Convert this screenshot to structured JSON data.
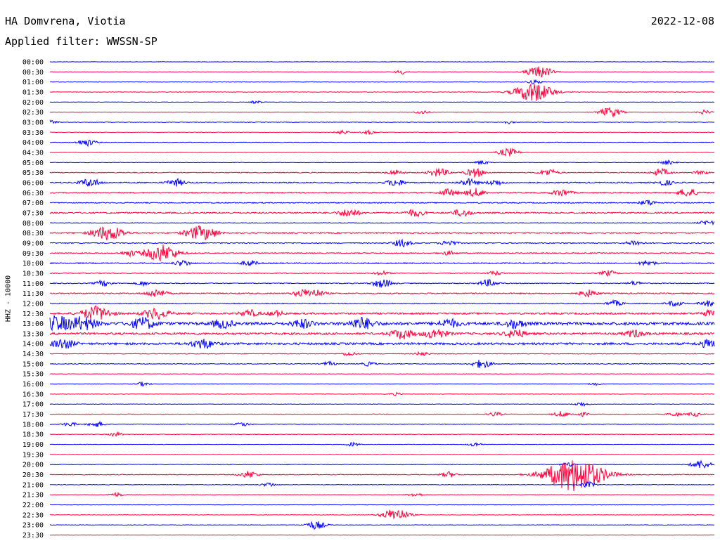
{
  "header": {
    "station": "HA Domvrena, Viotia",
    "date": "2022-12-08",
    "filter": "Applied filter: WWSSN-SP"
  },
  "chart_data": {
    "type": "line",
    "title": "HA Domvrena, Viotia",
    "ylabel": "HHZ - 10000",
    "colors": [
      "#0000ff",
      "#ff003c"
    ],
    "rows": [
      {
        "label": "00:00",
        "activity": 0.3,
        "events": []
      },
      {
        "label": "00:30",
        "activity": 0.3,
        "events": [
          [
            0.53,
            3
          ],
          [
            0.73,
            6
          ],
          [
            0.745,
            5
          ]
        ]
      },
      {
        "label": "01:00",
        "activity": 0.3,
        "events": [
          [
            0.73,
            3
          ]
        ]
      },
      {
        "label": "01:30",
        "activity": 0.4,
        "events": [
          [
            0.728,
            14
          ]
        ]
      },
      {
        "label": "02:00",
        "activity": 0.25,
        "events": [
          [
            0.31,
            2
          ]
        ]
      },
      {
        "label": "02:30",
        "activity": 0.3,
        "events": [
          [
            0.56,
            3
          ],
          [
            0.843,
            7
          ],
          [
            0.985,
            3
          ]
        ]
      },
      {
        "label": "03:00",
        "activity": 0.4,
        "events": [
          [
            0.0,
            3
          ],
          [
            0.69,
            2
          ]
        ]
      },
      {
        "label": "03:30",
        "activity": 0.3,
        "events": [
          [
            0.44,
            3
          ],
          [
            0.48,
            3
          ]
        ]
      },
      {
        "label": "04:00",
        "activity": 0.4,
        "events": [
          [
            0.055,
            5
          ]
        ]
      },
      {
        "label": "04:30",
        "activity": 0.3,
        "events": [
          [
            0.69,
            6
          ]
        ]
      },
      {
        "label": "05:00",
        "activity": 0.35,
        "events": [
          [
            0.65,
            3
          ],
          [
            0.93,
            3
          ]
        ]
      },
      {
        "label": "05:30",
        "activity": 0.6,
        "events": [
          [
            0.52,
            4
          ],
          [
            0.585,
            6
          ],
          [
            0.64,
            6
          ],
          [
            0.75,
            5
          ],
          [
            0.92,
            5
          ],
          [
            0.98,
            3
          ]
        ]
      },
      {
        "label": "06:00",
        "activity": 0.8,
        "events": [
          [
            0.06,
            6
          ],
          [
            0.19,
            5
          ],
          [
            0.52,
            5
          ],
          [
            0.63,
            5
          ],
          [
            0.67,
            4
          ],
          [
            0.925,
            4
          ]
        ]
      },
      {
        "label": "06:30",
        "activity": 0.8,
        "events": [
          [
            0.6,
            5
          ],
          [
            0.64,
            6
          ],
          [
            0.77,
            5
          ],
          [
            0.96,
            6
          ]
        ]
      },
      {
        "label": "07:00",
        "activity": 0.7,
        "events": [
          [
            0.9,
            4
          ]
        ]
      },
      {
        "label": "07:30",
        "activity": 1.0,
        "events": [
          [
            0.45,
            6
          ],
          [
            0.55,
            5
          ],
          [
            0.62,
            5
          ]
        ]
      },
      {
        "label": "08:00",
        "activity": 0.5,
        "events": [
          [
            0.99,
            4
          ]
        ]
      },
      {
        "label": "08:30",
        "activity": 0.9,
        "events": [
          [
            0.08,
            8
          ],
          [
            0.1,
            6
          ],
          [
            0.22,
            8
          ],
          [
            0.24,
            6
          ]
        ]
      },
      {
        "label": "09:00",
        "activity": 0.7,
        "events": [
          [
            0.53,
            5
          ],
          [
            0.6,
            4
          ],
          [
            0.88,
            4
          ]
        ]
      },
      {
        "label": "09:30",
        "activity": 0.7,
        "events": [
          [
            0.12,
            4
          ],
          [
            0.168,
            12
          ],
          [
            0.6,
            3
          ]
        ]
      },
      {
        "label": "10:00",
        "activity": 0.8,
        "events": [
          [
            0.2,
            4
          ],
          [
            0.3,
            4
          ],
          [
            0.9,
            4
          ]
        ]
      },
      {
        "label": "10:30",
        "activity": 0.6,
        "events": [
          [
            0.5,
            3
          ],
          [
            0.67,
            3
          ],
          [
            0.84,
            4
          ]
        ]
      },
      {
        "label": "11:00",
        "activity": 0.6,
        "events": [
          [
            0.08,
            4
          ],
          [
            0.14,
            3
          ],
          [
            0.5,
            6
          ],
          [
            0.66,
            5
          ],
          [
            0.88,
            3
          ]
        ]
      },
      {
        "label": "11:30",
        "activity": 0.8,
        "events": [
          [
            0.16,
            6
          ],
          [
            0.38,
            5
          ],
          [
            0.4,
            5
          ],
          [
            0.81,
            5
          ]
        ]
      },
      {
        "label": "12:00",
        "activity": 0.6,
        "events": [
          [
            0.85,
            4
          ],
          [
            0.94,
            4
          ],
          [
            0.99,
            4
          ]
        ]
      },
      {
        "label": "12:30",
        "activity": 1.2,
        "events": [
          [
            0.07,
            10
          ],
          [
            0.16,
            8
          ],
          [
            0.3,
            5
          ],
          [
            0.34,
            4
          ],
          [
            0.99,
            4
          ]
        ]
      },
      {
        "label": "13:00",
        "activity": 2.0,
        "events": [
          [
            0.01,
            10
          ],
          [
            0.05,
            9
          ],
          [
            0.14,
            8
          ],
          [
            0.26,
            6
          ],
          [
            0.38,
            6
          ],
          [
            0.47,
            8
          ],
          [
            0.6,
            6
          ],
          [
            0.7,
            6
          ]
        ]
      },
      {
        "label": "13:30",
        "activity": 1.5,
        "events": [
          [
            0.53,
            7
          ],
          [
            0.58,
            7
          ],
          [
            0.7,
            6
          ],
          [
            0.88,
            5
          ]
        ]
      },
      {
        "label": "14:00",
        "activity": 1.5,
        "events": [
          [
            0.02,
            7
          ],
          [
            0.23,
            7
          ],
          [
            0.99,
            5
          ]
        ]
      },
      {
        "label": "14:30",
        "activity": 0.5,
        "events": [
          [
            0.45,
            3
          ],
          [
            0.56,
            3
          ]
        ]
      },
      {
        "label": "15:00",
        "activity": 0.5,
        "events": [
          [
            0.42,
            3
          ],
          [
            0.48,
            3
          ],
          [
            0.65,
            6
          ]
        ]
      },
      {
        "label": "15:30",
        "activity": 0.3,
        "events": []
      },
      {
        "label": "16:00",
        "activity": 0.3,
        "events": [
          [
            0.14,
            3
          ],
          [
            0.82,
            2
          ]
        ]
      },
      {
        "label": "16:30",
        "activity": 0.3,
        "events": [
          [
            0.52,
            2
          ]
        ]
      },
      {
        "label": "17:00",
        "activity": 0.3,
        "events": [
          [
            0.8,
            3
          ]
        ]
      },
      {
        "label": "17:30",
        "activity": 0.4,
        "events": [
          [
            0.67,
            3
          ],
          [
            0.77,
            4
          ],
          [
            0.8,
            3
          ],
          [
            0.94,
            3
          ],
          [
            0.97,
            3
          ]
        ]
      },
      {
        "label": "18:00",
        "activity": 0.4,
        "events": [
          [
            0.03,
            3
          ],
          [
            0.07,
            4
          ],
          [
            0.29,
            3
          ]
        ]
      },
      {
        "label": "18:30",
        "activity": 0.35,
        "events": [
          [
            0.1,
            3
          ]
        ]
      },
      {
        "label": "19:00",
        "activity": 0.3,
        "events": [
          [
            0.455,
            3
          ],
          [
            0.64,
            3
          ]
        ]
      },
      {
        "label": "19:30",
        "activity": 0.3,
        "events": []
      },
      {
        "label": "20:00",
        "activity": 0.4,
        "events": [
          [
            0.78,
            3
          ],
          [
            0.98,
            6
          ]
        ]
      },
      {
        "label": "20:30",
        "activity": 0.5,
        "events": [
          [
            0.3,
            5
          ],
          [
            0.6,
            4
          ],
          [
            0.79,
            24
          ]
        ]
      },
      {
        "label": "21:00",
        "activity": 0.4,
        "events": [
          [
            0.33,
            3
          ],
          [
            0.81,
            4
          ]
        ]
      },
      {
        "label": "21:30",
        "activity": 0.35,
        "events": [
          [
            0.1,
            3
          ],
          [
            0.55,
            3
          ]
        ]
      },
      {
        "label": "22:00",
        "activity": 0.3,
        "events": []
      },
      {
        "label": "22:30",
        "activity": 0.35,
        "events": [
          [
            0.52,
            9
          ]
        ]
      },
      {
        "label": "23:00",
        "activity": 0.3,
        "events": [
          [
            0.4,
            6
          ]
        ]
      },
      {
        "label": "23:30",
        "activity": 0.3,
        "events": []
      }
    ]
  }
}
